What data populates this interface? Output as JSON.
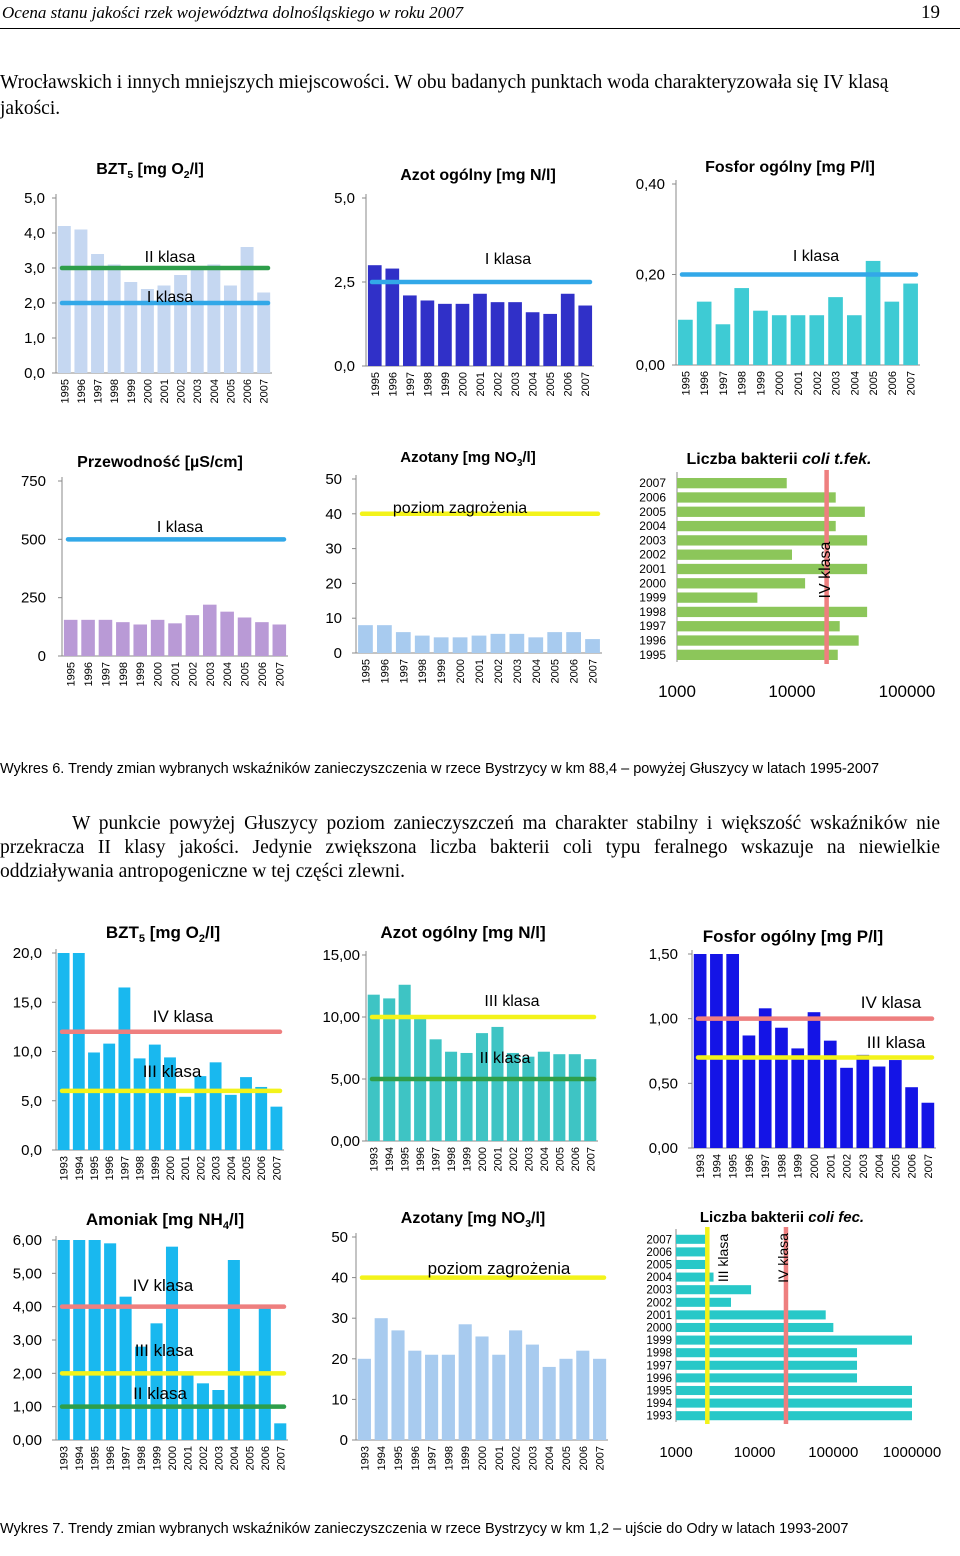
{
  "header": {
    "title": "Ocena stanu jakości rzek województwa dolnośląskiego w roku 2007",
    "page_number": "19"
  },
  "intro_text": "Wrocławskich i innych mniejszych miejscowości. W obu badanych punktach woda charakteryzowała się IV klasą jakości.",
  "caption6": "Wykres 6. Trendy zmian wybranych wskaźników zanieczyszczenia w rzece Bystrzycy w km 88,4 – powyżej Głuszycy w latach 1995-2007",
  "body_text": "W punkcie powyżej Głuszycy poziom zanieczyszczeń ma charakter stabilny i większość wskaźników nie przekracza II klasy jakości. Jedynie zwiększona liczba bakterii coli typu feralnego wskazuje na niewielkie oddziaływania antropogeniczne w tej części zlewni.",
  "caption7": "Wykres 7. Trendy zmian wybranych wskaźników zanieczyszczenia w rzece Bystrzycy w km 1,2 – ujście do Odry w latach 1993-2007",
  "chart_data": [
    {
      "id": "c6_bzt",
      "type": "bar",
      "figure": "Wykres 6",
      "title": "BZT5 [mg O2/l]",
      "title_sub": [
        "BZT",
        "5",
        " [mg O",
        "2",
        "/l]"
      ],
      "categories": [
        "1995",
        "1996",
        "1997",
        "1998",
        "1999",
        "2000",
        "2001",
        "2002",
        "2003",
        "2004",
        "2005",
        "2006",
        "2007"
      ],
      "values": [
        4.2,
        4.1,
        3.4,
        3.1,
        2.6,
        2.4,
        2.5,
        2.8,
        3.0,
        3.1,
        2.5,
        3.6,
        2.3
      ],
      "ylim": [
        0,
        5
      ],
      "yticks": [
        "0,0",
        "1,0",
        "2,0",
        "3,0",
        "4,0",
        "5,0"
      ],
      "bar_color": "#c5d7f1",
      "thresholds": [
        {
          "value": 3.0,
          "color": "#2e9e4a",
          "label": "II klasa"
        },
        {
          "value": 2.0,
          "color": "#32a8e8",
          "label": "I klasa"
        }
      ]
    },
    {
      "id": "c6_azot",
      "type": "bar",
      "figure": "Wykres 6",
      "title": "Azot ogólny [mg N/l]",
      "title_sub": [
        "Azot ogólny [mg N/l]"
      ],
      "categories": [
        "1995",
        "1996",
        "1997",
        "1998",
        "1999",
        "2000",
        "2001",
        "2002",
        "2003",
        "2004",
        "2005",
        "2006",
        "2007"
      ],
      "values": [
        3.0,
        2.9,
        2.1,
        1.95,
        1.85,
        1.85,
        2.15,
        1.9,
        1.9,
        1.6,
        1.55,
        2.15,
        1.8
      ],
      "ylim": [
        0,
        5
      ],
      "yticks": [
        "0,0",
        "2,5",
        "5,0"
      ],
      "bar_color": "#3030c8",
      "thresholds": [
        {
          "value": 2.5,
          "color": "#32a8e8",
          "label": "I klasa"
        }
      ]
    },
    {
      "id": "c6_fosfor",
      "type": "bar",
      "figure": "Wykres 6",
      "title": "Fosfor ogólny [mg P/l]",
      "title_sub": [
        "Fosfor ogólny [mg P/l]"
      ],
      "categories": [
        "1995",
        "1996",
        "1997",
        "1998",
        "1999",
        "2000",
        "2001",
        "2002",
        "2003",
        "2004",
        "2005",
        "2006",
        "2007"
      ],
      "values": [
        0.1,
        0.14,
        0.09,
        0.17,
        0.12,
        0.11,
        0.11,
        0.11,
        0.15,
        0.11,
        0.23,
        0.14,
        0.18
      ],
      "ylim": [
        0,
        0.4
      ],
      "yticks": [
        "0,00",
        "0,20",
        "0,40"
      ],
      "bar_color": "#3ecbd4",
      "thresholds": [
        {
          "value": 0.2,
          "color": "#32a8e8",
          "label": "I klasa"
        }
      ]
    },
    {
      "id": "c6_przew",
      "type": "bar",
      "figure": "Wykres 6",
      "title": "Przewodność [µS/cm]",
      "title_sub": [
        "Przewodność [µS/cm]"
      ],
      "categories": [
        "1995",
        "1996",
        "1997",
        "1998",
        "1999",
        "2000",
        "2001",
        "2002",
        "2003",
        "2004",
        "2005",
        "2006",
        "2007"
      ],
      "values": [
        155,
        155,
        155,
        145,
        135,
        155,
        140,
        175,
        220,
        190,
        165,
        145,
        135
      ],
      "ylim": [
        0,
        750
      ],
      "yticks": [
        "0",
        "250",
        "500",
        "750"
      ],
      "bar_color": "#b99ad6",
      "thresholds": [
        {
          "value": 500,
          "color": "#32a8e8",
          "label": "I klasa"
        }
      ]
    },
    {
      "id": "c6_azotany",
      "type": "bar",
      "figure": "Wykres 6",
      "title": "Azotany [mg NO3/l]",
      "title_sub": [
        "Azotany [mg NO",
        "3",
        "/l]"
      ],
      "categories": [
        "1995",
        "1996",
        "1997",
        "1998",
        "1999",
        "2000",
        "2001",
        "2002",
        "2003",
        "2004",
        "2005",
        "2006",
        "2007"
      ],
      "values": [
        8.0,
        8.0,
        6.0,
        5.0,
        4.5,
        4.5,
        5.0,
        5.5,
        5.5,
        4.5,
        6.0,
        6.0,
        4.0
      ],
      "ylim": [
        0,
        50
      ],
      "yticks": [
        "0",
        "10",
        "20",
        "30",
        "40",
        "50"
      ],
      "bar_color": "#a8cbef",
      "thresholds": [
        {
          "value": 40,
          "color": "#f3f31a",
          "label": "poziom zagrożenia"
        }
      ]
    },
    {
      "id": "c6_coli",
      "type": "hbar",
      "figure": "Wykres 6",
      "title": "Liczba bakterii coli t.fek.",
      "title_sub": [
        "Liczba bakterii ",
        "coli t.fek."
      ],
      "categories": [
        "2007",
        "2006",
        "2005",
        "2004",
        "2003",
        "2002",
        "2001",
        "2000",
        "1999",
        "1998",
        "1997",
        "1996",
        "1995"
      ],
      "values": [
        9000,
        24000,
        43000,
        24000,
        45000,
        10000,
        45000,
        13000,
        5000,
        45000,
        26000,
        38000,
        25000
      ],
      "xscale": "log",
      "xlim": [
        1000,
        100000
      ],
      "xticks": [
        "1000",
        "10000",
        "100000"
      ],
      "bar_color": "#8cc65a",
      "thresholds": [
        {
          "value": 20000,
          "color": "#ee7f7f",
          "label": "IV klasa",
          "orient": "vertical"
        }
      ]
    },
    {
      "id": "c7_bzt",
      "type": "bar",
      "figure": "Wykres 7",
      "title": "BZT5 [mg O2/l]",
      "title_sub": [
        "BZT",
        "5",
        " [mg O",
        "2",
        "/l]"
      ],
      "categories": [
        "1993",
        "1994",
        "1995",
        "1996",
        "1997",
        "1998",
        "1999",
        "2000",
        "2001",
        "2002",
        "2003",
        "2004",
        "2005",
        "2006",
        "2007"
      ],
      "values": [
        20.0,
        20.0,
        9.9,
        10.8,
        16.5,
        9.3,
        10.7,
        9.4,
        5.4,
        7.5,
        8.9,
        5.6,
        7.4,
        6.4,
        4.4
      ],
      "ylim": [
        0,
        20
      ],
      "yticks": [
        "0,0",
        "5,0",
        "10,0",
        "15,0",
        "20,0"
      ],
      "bar_color": "#19b8ef",
      "thresholds": [
        {
          "value": 12,
          "color": "#ee7f7f",
          "label": "IV klasa"
        },
        {
          "value": 6,
          "color": "#f3f31a",
          "label": "III klasa"
        }
      ]
    },
    {
      "id": "c7_azot",
      "type": "bar",
      "figure": "Wykres 7",
      "title": "Azot ogólny [mg N/l]",
      "title_sub": [
        "Azot ogólny [mg N/l]"
      ],
      "categories": [
        "1993",
        "1994",
        "1995",
        "1996",
        "1997",
        "1998",
        "1999",
        "2000",
        "2001",
        "2002",
        "2003",
        "2004",
        "2005",
        "2006",
        "2007"
      ],
      "values": [
        11.8,
        11.5,
        12.6,
        9.9,
        8.2,
        7.2,
        7.1,
        8.7,
        9.2,
        7.1,
        6.8,
        7.2,
        7.0,
        7.0,
        6.6
      ],
      "ylim": [
        0,
        15
      ],
      "yticks": [
        "0,00",
        "5,00",
        "10,00",
        "15,00"
      ],
      "bar_color": "#3ec4c4",
      "thresholds": [
        {
          "value": 10,
          "color": "#f3f31a",
          "label": "III klasa"
        },
        {
          "value": 5,
          "color": "#2e9e4a",
          "label": "II klasa"
        }
      ]
    },
    {
      "id": "c7_fosfor",
      "type": "bar",
      "figure": "Wykres 7",
      "title": "Fosfor ogólny [mg P/l]",
      "title_sub": [
        "Fosfor ogólny [mg P/l]"
      ],
      "categories": [
        "1993",
        "1994",
        "1995",
        "1996",
        "1997",
        "1998",
        "1999",
        "2000",
        "2001",
        "2002",
        "2003",
        "2004",
        "2005",
        "2006",
        "2007"
      ],
      "values": [
        1.5,
        1.5,
        1.5,
        0.87,
        1.08,
        0.93,
        0.77,
        1.05,
        0.83,
        0.62,
        0.72,
        0.63,
        0.68,
        0.47,
        0.35
      ],
      "ylim": [
        0,
        1.5
      ],
      "yticks": [
        "0,00",
        "0,50",
        "1,00",
        "1,50"
      ],
      "bar_color": "#1414e6",
      "thresholds": [
        {
          "value": 1.0,
          "color": "#ee7f7f",
          "label": "IV klasa"
        },
        {
          "value": 0.7,
          "color": "#f3f31a",
          "label": "III klasa"
        }
      ]
    },
    {
      "id": "c7_amoniak",
      "type": "bar",
      "figure": "Wykres 7",
      "title": "Amoniak [mg NH4/l]",
      "title_sub": [
        "Amoniak [mg NH",
        "4",
        "/l]"
      ],
      "categories": [
        "1993",
        "1994",
        "1995",
        "1996",
        "1997",
        "1998",
        "1999",
        "2000",
        "2001",
        "2002",
        "2003",
        "2004",
        "2005",
        "2006",
        "2007"
      ],
      "values": [
        6.0,
        6.0,
        6.0,
        5.9,
        4.3,
        2.8,
        3.5,
        5.8,
        2.0,
        1.7,
        1.5,
        5.4,
        2.0,
        4.0,
        0.5
      ],
      "ylim": [
        0,
        6
      ],
      "yticks": [
        "0,00",
        "1,00",
        "2,00",
        "3,00",
        "4,00",
        "5,00",
        "6,00"
      ],
      "bar_color": "#19b8ef",
      "thresholds": [
        {
          "value": 4.0,
          "color": "#ee7f7f",
          "label": "IV klasa"
        },
        {
          "value": 2.0,
          "color": "#f3f31a",
          "label": "III klasa"
        },
        {
          "value": 1.0,
          "color": "#2e9e4a",
          "label": "II klasa"
        }
      ]
    },
    {
      "id": "c7_azotany",
      "type": "bar",
      "figure": "Wykres 7",
      "title": "Azotany [mg NO3/l]",
      "title_sub": [
        "Azotany [mg NO",
        "3",
        "/l]"
      ],
      "categories": [
        "1993",
        "1994",
        "1995",
        "1996",
        "1997",
        "1998",
        "1999",
        "2000",
        "2001",
        "2002",
        "2003",
        "2004",
        "2005",
        "2006",
        "2007"
      ],
      "values": [
        20,
        30,
        27,
        22,
        21,
        21,
        28.5,
        25.5,
        21,
        27,
        23.5,
        18,
        20,
        22,
        20
      ],
      "ylim": [
        0,
        50
      ],
      "yticks": [
        "0",
        "10",
        "20",
        "30",
        "40",
        "50"
      ],
      "bar_color": "#a8cbef",
      "thresholds": [
        {
          "value": 40,
          "color": "#f3f31a",
          "label": "poziom zagrożenia"
        }
      ]
    },
    {
      "id": "c7_coli",
      "type": "hbar",
      "figure": "Wykres 7",
      "title": "Liczba bakterii coli fec.",
      "title_sub": [
        "Liczba bakterii ",
        "coli fec."
      ],
      "categories": [
        "2007",
        "2006",
        "2005",
        "2004",
        "2003",
        "2002",
        "2001",
        "2000",
        "1999",
        "1998",
        "1997",
        "1996",
        "1995",
        "1994",
        "1993"
      ],
      "values": [
        2400,
        2400,
        2400,
        3000,
        9000,
        5000,
        80000,
        100000,
        1000000,
        200000,
        200000,
        200000,
        1000000,
        1000000,
        1000000
      ],
      "xscale": "log",
      "xlim": [
        1000,
        1000000
      ],
      "xticks": [
        "1000",
        "10000",
        "100000",
        "1000000"
      ],
      "bar_color": "#28c8c8",
      "thresholds": [
        {
          "value": 2500,
          "color": "#f3f31a",
          "label": "III klasa",
          "orient": "vertical"
        },
        {
          "value": 25000,
          "color": "#ee7f7f",
          "label": "IV klasa",
          "orient": "vertical"
        }
      ]
    }
  ]
}
